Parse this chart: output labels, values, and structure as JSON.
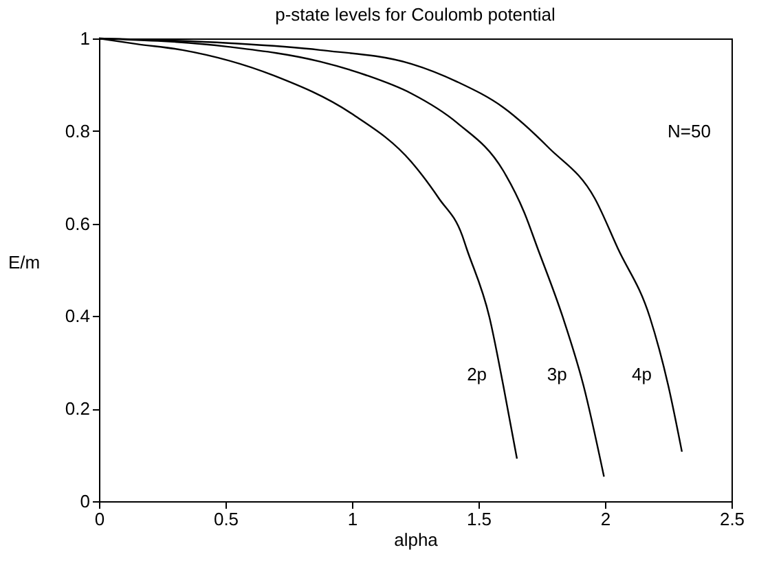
{
  "chart_data": {
    "type": "line",
    "title": "p-state levels for Coulomb potential",
    "xlabel": "alpha",
    "ylabel": "E/m",
    "series": [
      {
        "name": "2p",
        "color": "#000000",
        "x": [
          0,
          0.149,
          0.33,
          0.69,
          1.0,
          1.235,
          1.344,
          1.435,
          1.453,
          1.543,
          1.598,
          1.652
        ],
        "values": [
          1,
          0.988,
          0.975,
          0.92,
          0.837,
          0.733,
          0.654,
          0.575,
          0.546,
          0.398,
          0.25,
          0.092
        ]
      },
      {
        "name": "3p",
        "color": "#000000",
        "x": [
          0,
          0.511,
          0.873,
          1.054,
          1.235,
          1.417,
          1.598,
          1.68,
          1.734,
          1.833,
          1.915,
          1.996
        ],
        "values": [
          1,
          0.982,
          0.95,
          0.921,
          0.881,
          0.817,
          0.714,
          0.625,
          0.546,
          0.398,
          0.25,
          0.053
        ]
      },
      {
        "name": "4p",
        "color": "#000000",
        "x": [
          0,
          0.511,
          0.873,
          1.235,
          1.417,
          1.598,
          1.779,
          1.96,
          2.051,
          2.177,
          2.25,
          2.304
        ],
        "values": [
          1,
          0.99,
          0.975,
          0.945,
          0.906,
          0.851,
          0.763,
          0.654,
          0.546,
          0.398,
          0.25,
          0.107
        ]
      }
    ],
    "annotations": [
      "N=50"
    ],
    "xlim": [
      0,
      2.5
    ],
    "xticks": [
      0,
      0.5,
      1,
      1.5,
      2,
      2.5
    ],
    "ylim": [
      0,
      1
    ],
    "yticks": [
      0,
      0.2,
      0.4,
      0.6,
      0.8,
      1
    ],
    "grid": false,
    "legend": false,
    "marker": "none",
    "line_style": "solid"
  }
}
